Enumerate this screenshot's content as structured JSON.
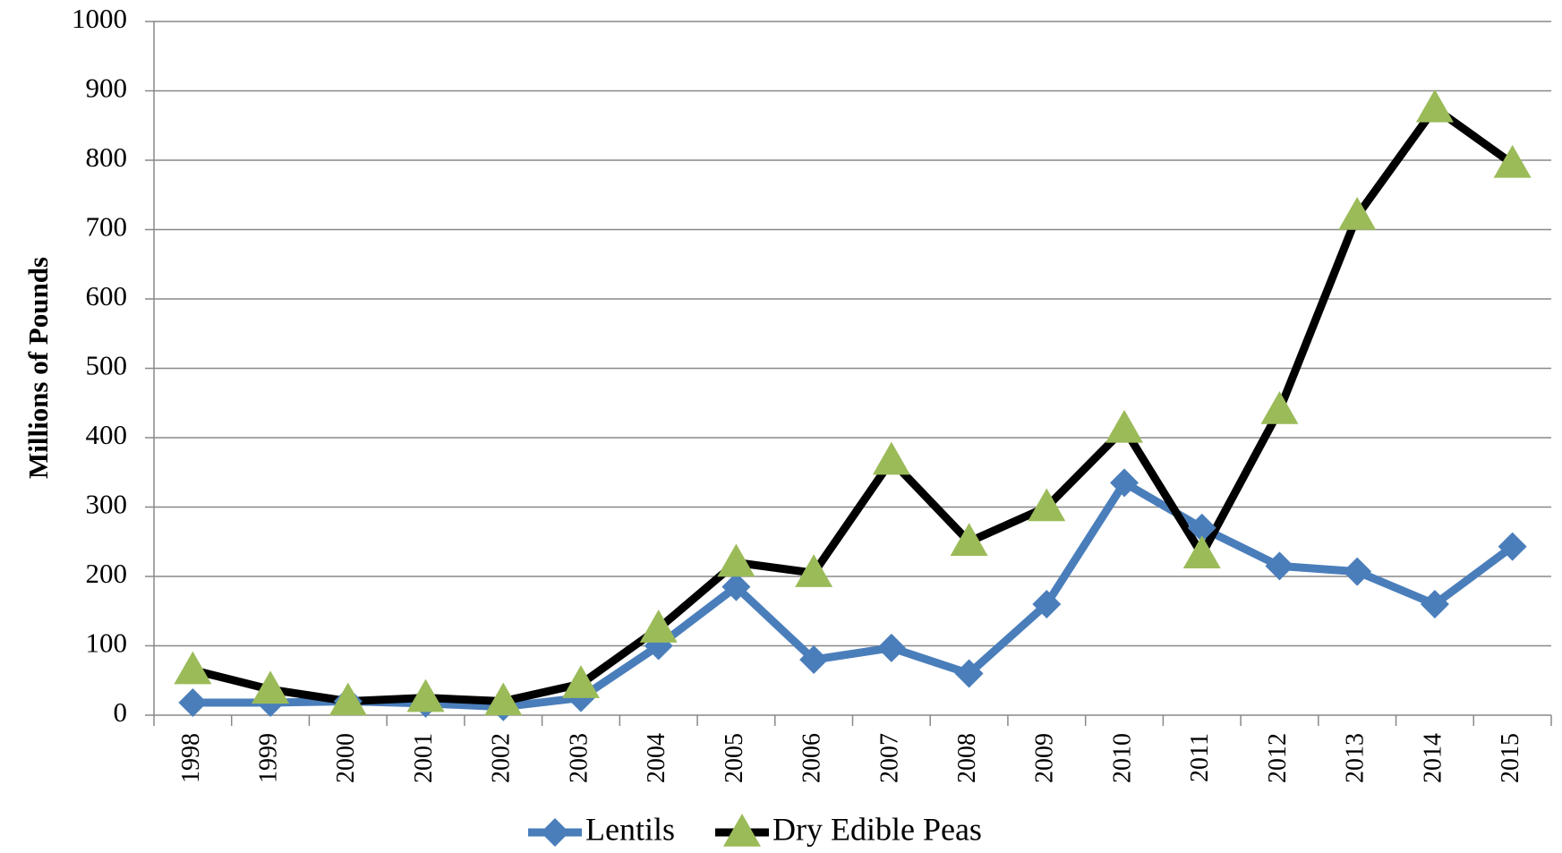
{
  "chart_data": {
    "type": "line",
    "y_label": "Millions of Pounds",
    "categories": [
      "1998",
      "1999",
      "2000",
      "2001",
      "2002",
      "2003",
      "2004",
      "2005",
      "2006",
      "2007",
      "2008",
      "2009",
      "2010",
      "2011",
      "2012",
      "2013",
      "2014",
      "2015"
    ],
    "series": [
      {
        "name": "Lentils",
        "color": "#4a7ebb",
        "marker": "diamond",
        "marker_color": "#4a7ebb",
        "values": [
          18,
          18,
          20,
          17,
          12,
          25,
          100,
          185,
          80,
          97,
          60,
          160,
          335,
          270,
          215,
          207,
          160,
          243
        ]
      },
      {
        "name": "Dry Edible Peas",
        "color": "#000000",
        "marker": "triangle",
        "marker_color": "#9bbb59",
        "values": [
          65,
          37,
          20,
          25,
          20,
          45,
          125,
          220,
          205,
          367,
          250,
          300,
          413,
          232,
          440,
          720,
          875,
          795
        ]
      }
    ],
    "ylim": [
      0,
      1000
    ],
    "yticks": [
      0,
      100,
      200,
      300,
      400,
      500,
      600,
      700,
      800,
      900,
      1000
    ],
    "grid": true,
    "legend": "bottom"
  }
}
